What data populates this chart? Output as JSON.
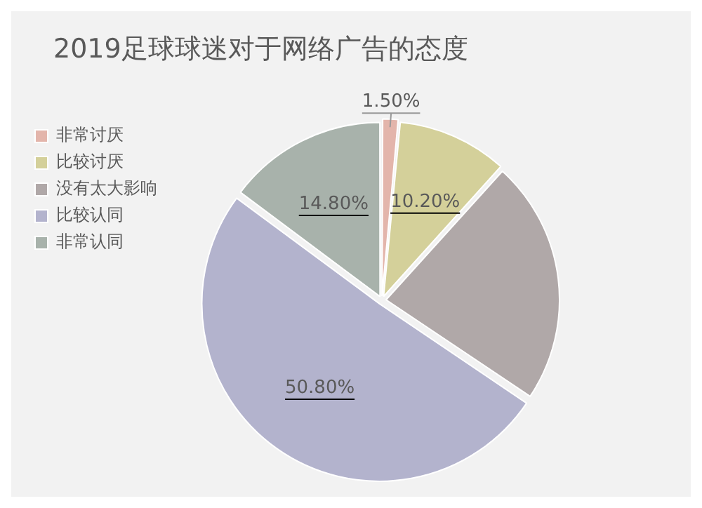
{
  "chart_data": {
    "type": "pie",
    "title": "2019足球球迷对于网络广告的态度",
    "categories": [
      "非常讨厌",
      "比较讨厌",
      "没有太大影响",
      "比较认同",
      "非常认同"
    ],
    "values": [
      1.5,
      10.2,
      22.7,
      50.8,
      14.8
    ],
    "value_labels": [
      "1.50%",
      "10.20%",
      null,
      "50.80%",
      "14.80%"
    ],
    "colors": [
      "#e3b5ab",
      "#d4d09a",
      "#b0a8a8",
      "#b3b3cd",
      "#a8b2ab"
    ],
    "legend": "left"
  }
}
